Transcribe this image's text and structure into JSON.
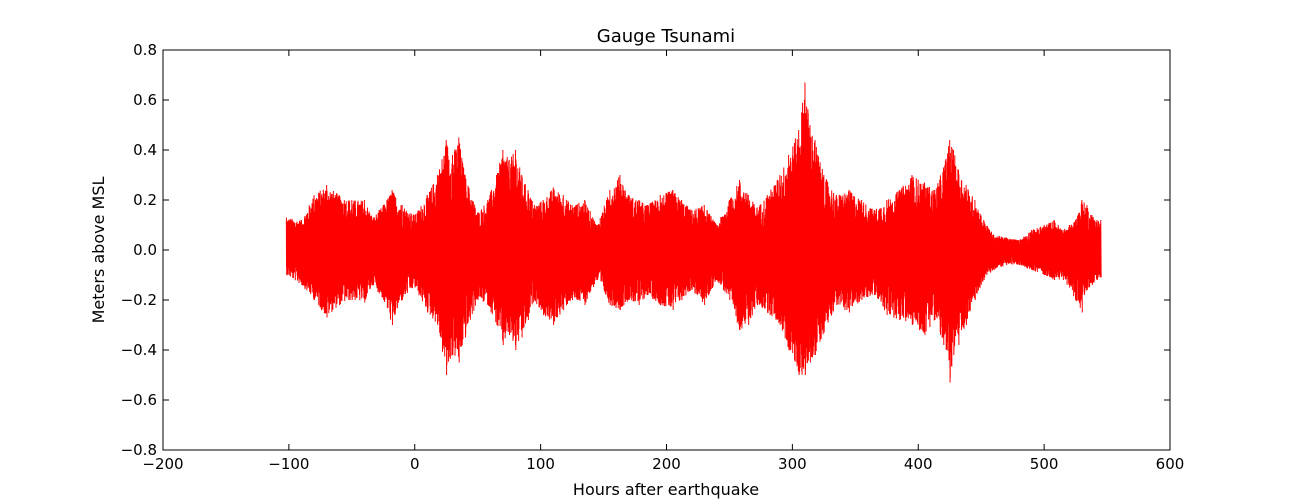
{
  "chart_data": {
    "type": "line",
    "title": "Gauge Tsunami",
    "xlabel": "Hours after earthquake",
    "ylabel": "Meters above MSL",
    "xlim": [
      -200,
      600
    ],
    "ylim": [
      -0.8,
      0.8
    ],
    "x_ticks": [
      -200,
      -100,
      0,
      100,
      200,
      300,
      400,
      500,
      600
    ],
    "x_tick_labels": [
      "−200",
      "−100",
      "0",
      "100",
      "200",
      "300",
      "400",
      "500",
      "600"
    ],
    "y_ticks": [
      0.8,
      0.6,
      0.4,
      0.2,
      0.0,
      -0.2,
      -0.4,
      -0.6,
      -0.8
    ],
    "y_tick_labels": [
      "0.8",
      "0.6",
      "0.4",
      "0.2",
      "0.0",
      "−0.2",
      "−0.4",
      "−0.6",
      "−0.8"
    ],
    "grid": false,
    "legend": "none",
    "series": [
      {
        "color": "#ff0000",
        "x_start": -102,
        "x_end": 545,
        "envelope": {
          "x": [
            -102,
            -90,
            -80,
            -70,
            -60,
            -50,
            -40,
            -33,
            -25,
            -18,
            -10,
            0,
            10,
            18,
            25,
            30,
            35,
            40,
            50,
            58,
            65,
            70,
            75,
            80,
            85,
            90,
            95,
            102,
            110,
            118,
            125,
            135,
            145,
            155,
            163,
            170,
            178,
            185,
            195,
            205,
            212,
            220,
            230,
            240,
            250,
            258,
            265,
            272,
            280,
            290,
            297,
            305,
            310,
            314,
            318,
            325,
            335,
            345,
            355,
            365,
            375,
            385,
            395,
            405,
            413,
            420,
            425,
            428,
            432,
            438,
            445,
            452,
            460,
            470,
            480,
            490,
            500,
            508,
            515,
            520,
            525,
            530,
            534,
            538,
            542,
            545
          ],
          "max": [
            0.13,
            0.12,
            0.22,
            0.26,
            0.22,
            0.2,
            0.2,
            0.13,
            0.18,
            0.24,
            0.18,
            0.14,
            0.22,
            0.3,
            0.44,
            0.38,
            0.45,
            0.3,
            0.15,
            0.2,
            0.3,
            0.4,
            0.36,
            0.4,
            0.3,
            0.24,
            0.18,
            0.2,
            0.25,
            0.22,
            0.18,
            0.2,
            0.1,
            0.24,
            0.3,
            0.22,
            0.2,
            0.18,
            0.22,
            0.24,
            0.2,
            0.16,
            0.18,
            0.1,
            0.2,
            0.28,
            0.22,
            0.17,
            0.22,
            0.3,
            0.38,
            0.48,
            0.67,
            0.5,
            0.44,
            0.3,
            0.22,
            0.24,
            0.2,
            0.16,
            0.2,
            0.24,
            0.3,
            0.27,
            0.24,
            0.33,
            0.44,
            0.4,
            0.32,
            0.26,
            0.2,
            0.12,
            0.06,
            0.05,
            0.04,
            0.08,
            0.1,
            0.12,
            0.08,
            0.1,
            0.12,
            0.2,
            0.18,
            0.14,
            0.12,
            0.12
          ],
          "min": [
            -0.1,
            -0.14,
            -0.2,
            -0.27,
            -0.22,
            -0.2,
            -0.21,
            -0.14,
            -0.2,
            -0.3,
            -0.2,
            -0.15,
            -0.25,
            -0.3,
            -0.5,
            -0.42,
            -0.45,
            -0.35,
            -0.2,
            -0.22,
            -0.3,
            -0.38,
            -0.34,
            -0.4,
            -0.35,
            -0.28,
            -0.2,
            -0.26,
            -0.3,
            -0.24,
            -0.2,
            -0.22,
            -0.12,
            -0.22,
            -0.24,
            -0.2,
            -0.22,
            -0.18,
            -0.22,
            -0.24,
            -0.2,
            -0.16,
            -0.22,
            -0.12,
            -0.2,
            -0.32,
            -0.3,
            -0.22,
            -0.25,
            -0.3,
            -0.4,
            -0.5,
            -0.5,
            -0.45,
            -0.42,
            -0.33,
            -0.22,
            -0.25,
            -0.2,
            -0.18,
            -0.26,
            -0.28,
            -0.3,
            -0.34,
            -0.28,
            -0.38,
            -0.53,
            -0.42,
            -0.38,
            -0.3,
            -0.2,
            -0.12,
            -0.08,
            -0.06,
            -0.06,
            -0.08,
            -0.1,
            -0.12,
            -0.12,
            -0.15,
            -0.2,
            -0.25,
            -0.16,
            -0.14,
            -0.12,
            -0.11
          ]
        }
      }
    ]
  }
}
